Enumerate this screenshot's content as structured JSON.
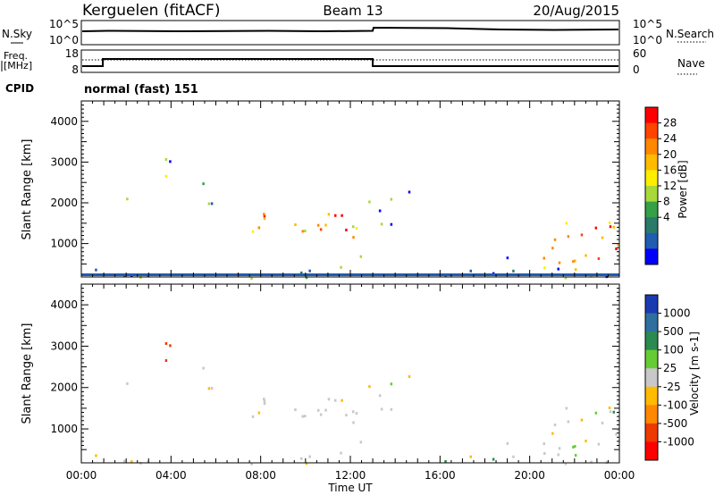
{
  "header": {
    "station": "Kerguelen (fitACF)",
    "beam": "Beam 13",
    "date": "20/Aug/2015"
  },
  "params": {
    "nsky_label": "N.Sky",
    "nsky_ticks": [
      "10^5",
      "10^0"
    ],
    "nsearch_label": "N.Search",
    "nsearch_ticks": [
      "10^5",
      "10^0"
    ],
    "freq_label_1": "Freq.",
    "freq_label_2": "[MHz]",
    "freq_ticks": [
      "18",
      "8"
    ],
    "nave_label": "Nave",
    "nave_ticks": [
      "60",
      "0"
    ],
    "cpid_label": "CPID",
    "cpid_value": "normal (fast) 151"
  },
  "axes": {
    "ylabel": "Slant Range [km]",
    "xlabel": "Time UT",
    "xticks": [
      "00:00",
      "04:00",
      "08:00",
      "12:00",
      "16:00",
      "20:00",
      "00:00"
    ],
    "yticks": [
      "1000",
      "2000",
      "3000",
      "4000"
    ]
  },
  "power_colorbar": {
    "title": "Power [dB]",
    "ticks": [
      "28",
      "24",
      "20",
      "16",
      "12",
      "8",
      "4"
    ],
    "colors": [
      "#ff0000",
      "#ff4400",
      "#ff8800",
      "#ffbb00",
      "#ffee00",
      "#a8d83a",
      "#35a045",
      "#2a7a6a",
      "#205cb0",
      "#0000ff"
    ]
  },
  "velocity_colorbar": {
    "title": "Velocity [m s-1]",
    "ticks": [
      "1000",
      "500",
      "100",
      "25",
      "-25",
      "-100",
      "-500",
      "-1000"
    ],
    "colors": [
      "#1a3ab0",
      "#2f6fa0",
      "#2a8a50",
      "#66cc33",
      "#c8c8c8",
      "#ffbb00",
      "#ff8800",
      "#ee3a00",
      "#ff0000"
    ]
  },
  "chart_data": {
    "type": "heatmap",
    "x_range": [
      "00:00",
      "24:00"
    ],
    "y_range_km": [
      180,
      4500
    ],
    "panels": [
      "power",
      "velocity"
    ]
  }
}
